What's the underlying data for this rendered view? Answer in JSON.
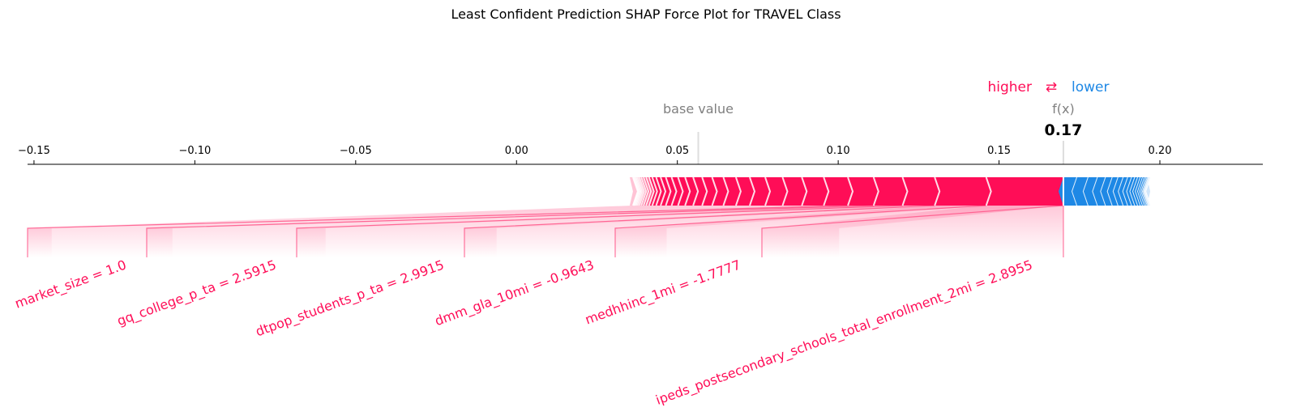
{
  "chart_data": {
    "type": "force",
    "title": "Least Confident Prediction SHAP Force Plot for TRAVEL Class",
    "base_value": 0.0565,
    "output_value": 0.17,
    "output_label": "f(x)",
    "output_value_label": "0.17",
    "base_value_label": "base value",
    "legend": {
      "higher_label": "higher",
      "lower_label": "lower",
      "arrow_symbol": "⇄",
      "higher_color": "#ff0d57",
      "lower_color": "#1e88e5"
    },
    "xlim": [
      -0.152,
      0.232
    ],
    "x_ticks": [
      {
        "value": -0.15,
        "label": "−0.15"
      },
      {
        "value": -0.1,
        "label": "−0.10"
      },
      {
        "value": -0.05,
        "label": "−0.05"
      },
      {
        "value": 0.0,
        "label": "0.00"
      },
      {
        "value": 0.05,
        "label": "0.05"
      },
      {
        "value": 0.1,
        "label": "0.10"
      },
      {
        "value": 0.15,
        "label": "0.15"
      },
      {
        "value": 0.2,
        "label": "0.20"
      }
    ],
    "positive_features": [
      {
        "label": "ipeds_postsecondary_schools_total_enrollment_2mi = 2.8955",
        "contribution": 0.024
      },
      {
        "label": "medhhinc_1mi = -1.7777",
        "contribution": 0.016
      },
      {
        "label": "dmm_gla_10mi = -0.9643",
        "contribution": 0.01
      },
      {
        "label": "dtpop_students_p_ta = 2.9915",
        "contribution": 0.009
      },
      {
        "label": "gq_college_p_ta = 2.5915",
        "contribution": 0.008
      },
      {
        "label": "market_size = 1.0",
        "contribution": 0.0075
      }
    ],
    "positive_tail_contributions": [
      0.0068,
      0.006,
      0.0054,
      0.0048,
      0.0043,
      0.0039,
      0.0035,
      0.0031,
      0.0028,
      0.0025,
      0.0022,
      0.002,
      0.0018,
      0.0016,
      0.0014,
      0.0012,
      0.001,
      0.0009,
      0.0008,
      0.0007,
      0.0006,
      0.0005,
      0.0004,
      0.0003,
      0.0003,
      0.0002,
      0.0002,
      0.0001
    ],
    "negative_contributions": [
      0.0043,
      0.0035,
      0.0029,
      0.0025,
      0.0021,
      0.0018,
      0.0016,
      0.0014,
      0.0012,
      0.001,
      0.0009,
      0.0008,
      0.0007,
      0.0006,
      0.0005,
      0.0004,
      0.0003,
      0.0002,
      0.0002,
      0.0001
    ],
    "colors": {
      "positive": "#ff0d57",
      "negative": "#1e88e5",
      "positive_faded": "#ffc3d5",
      "negative_faded": "#d1e6fa",
      "connector": "#ff77a0"
    }
  }
}
